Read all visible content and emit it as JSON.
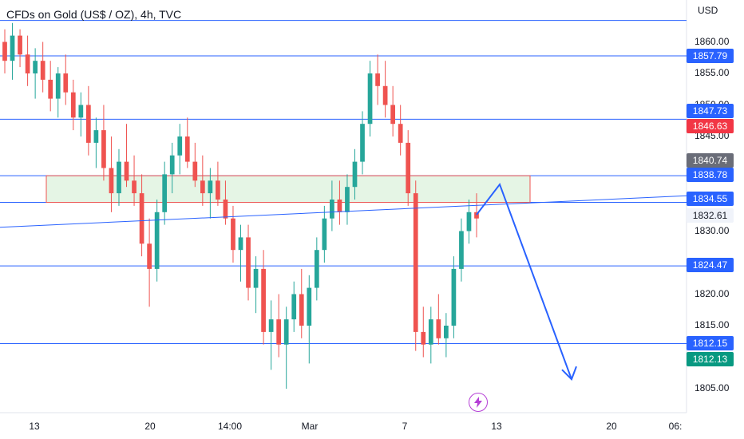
{
  "header": {
    "title": "CFDs on Gold (US$ / OZ), 4h, TVC",
    "currency": "USD"
  },
  "colors": {
    "up": "#26a69a",
    "down": "#ef5350",
    "line": "#2962ff",
    "zone_fill": "#dff3df",
    "zone_border": "#ef5350",
    "current_tag": "#089981",
    "down_tag": "#f23645",
    "gray_tag": "#6a6d78"
  },
  "price_axis": {
    "ticks": [
      "1860.00",
      "1855.00",
      "1850.00",
      "1845.00",
      "1830.00",
      "1820.00",
      "1815.00",
      "1805.00"
    ],
    "labels": [
      {
        "text": "1857.79",
        "kind": "line"
      },
      {
        "text": "1847.73",
        "kind": "line"
      },
      {
        "text": "1846.63",
        "kind": "down"
      },
      {
        "text": "1840.74",
        "kind": "gray"
      },
      {
        "text": "1838.78",
        "kind": "line"
      },
      {
        "text": "1834.55",
        "kind": "line"
      },
      {
        "text": "1832.61",
        "kind": "plain"
      },
      {
        "text": "1824.47",
        "kind": "line"
      },
      {
        "text": "1812.15",
        "kind": "line"
      },
      {
        "text": "1812.13",
        "kind": "current"
      }
    ]
  },
  "time_axis": {
    "ticks": [
      "13",
      "20",
      "14:00",
      "Mar",
      "7",
      "13",
      "20",
      "06:"
    ]
  },
  "chart_data": {
    "type": "candlestick",
    "title": "CFDs on Gold (US$ / OZ), 4h, TVC",
    "y_unit": "USD",
    "ylim": [
      1802,
      1862
    ],
    "horizontal_levels": [
      1863.4,
      1857.79,
      1847.73,
      1838.78,
      1834.55,
      1824.47,
      1812.15
    ],
    "zone": {
      "low": 1834.55,
      "high": 1838.78
    },
    "trendline": {
      "start": 1830.6,
      "end": 1835.6
    },
    "projection": [
      1832.6,
      1837.4,
      1806.5
    ],
    "last_price": 1812.13,
    "candles": [
      [
        1860,
        1862,
        1855,
        1857
      ],
      [
        1857,
        1863,
        1854,
        1861
      ],
      [
        1861,
        1862,
        1856,
        1858
      ],
      [
        1858,
        1861,
        1853,
        1855
      ],
      [
        1855,
        1859,
        1851,
        1857
      ],
      [
        1857,
        1860,
        1852,
        1854
      ],
      [
        1854,
        1857,
        1849,
        1851
      ],
      [
        1851,
        1856,
        1848,
        1855
      ],
      [
        1855,
        1858,
        1850,
        1852
      ],
      [
        1852,
        1854,
        1846,
        1848
      ],
      [
        1848,
        1852,
        1845,
        1850
      ],
      [
        1850,
        1853,
        1842,
        1844
      ],
      [
        1844,
        1848,
        1840,
        1846
      ],
      [
        1846,
        1850,
        1838,
        1840
      ],
      [
        1840,
        1845,
        1833,
        1836
      ],
      [
        1836,
        1843,
        1834,
        1841
      ],
      [
        1841,
        1847,
        1837,
        1838
      ],
      [
        1838,
        1842,
        1834,
        1836
      ],
      [
        1836,
        1839,
        1826,
        1828
      ],
      [
        1828,
        1832,
        1818,
        1824
      ],
      [
        1824,
        1835,
        1822,
        1833
      ],
      [
        1833,
        1841,
        1831,
        1839
      ],
      [
        1839,
        1844,
        1836,
        1842
      ],
      [
        1842,
        1847,
        1839,
        1845
      ],
      [
        1845,
        1848,
        1840,
        1841
      ],
      [
        1841,
        1844,
        1837,
        1838
      ],
      [
        1838,
        1842,
        1834,
        1836
      ],
      [
        1836,
        1840,
        1832,
        1838
      ],
      [
        1838,
        1841,
        1834,
        1835
      ],
      [
        1835,
        1838,
        1831,
        1832
      ],
      [
        1832,
        1834,
        1825,
        1827
      ],
      [
        1827,
        1831,
        1822,
        1829
      ],
      [
        1829,
        1831,
        1819,
        1821
      ],
      [
        1821,
        1826,
        1817,
        1824
      ],
      [
        1824,
        1827,
        1812,
        1814
      ],
      [
        1814,
        1819,
        1808,
        1816
      ],
      [
        1816,
        1820,
        1810,
        1812
      ],
      [
        1812,
        1818,
        1805,
        1816
      ],
      [
        1816,
        1822,
        1814,
        1820
      ],
      [
        1820,
        1824,
        1813,
        1815
      ],
      [
        1815,
        1823,
        1809,
        1821
      ],
      [
        1821,
        1829,
        1819,
        1827
      ],
      [
        1827,
        1834,
        1825,
        1832
      ],
      [
        1832,
        1838,
        1830,
        1835
      ],
      [
        1835,
        1838,
        1831,
        1833
      ],
      [
        1833,
        1839,
        1831,
        1837
      ],
      [
        1837,
        1843,
        1835,
        1841
      ],
      [
        1841,
        1849,
        1839,
        1847
      ],
      [
        1847,
        1857,
        1845,
        1855
      ],
      [
        1855,
        1858,
        1850,
        1853
      ],
      [
        1853,
        1857,
        1848,
        1850
      ],
      [
        1850,
        1853,
        1845,
        1847
      ],
      [
        1847,
        1850,
        1842,
        1844
      ],
      [
        1844,
        1846,
        1834,
        1836
      ],
      [
        1836,
        1838,
        1811,
        1814
      ],
      [
        1814,
        1818,
        1810,
        1812
      ],
      [
        1812,
        1818,
        1809,
        1816
      ],
      [
        1816,
        1820,
        1812,
        1813
      ],
      [
        1813,
        1817,
        1810,
        1815
      ],
      [
        1815,
        1826,
        1813,
        1824
      ],
      [
        1824,
        1832,
        1822,
        1830
      ],
      [
        1830,
        1835,
        1828,
        1833
      ],
      [
        1833,
        1836,
        1829,
        1832
      ]
    ]
  }
}
